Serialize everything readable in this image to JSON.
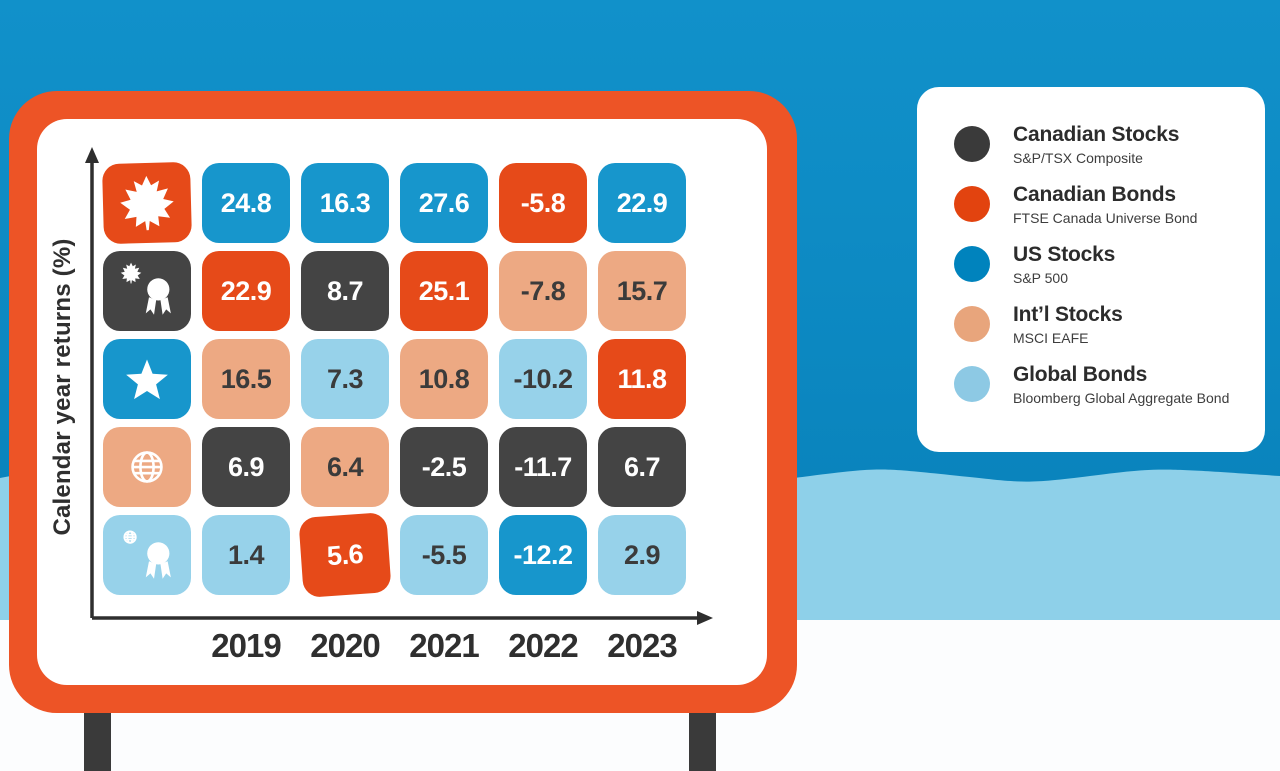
{
  "background": {
    "sky_top": "#1191ca",
    "sky_bottom": "#0a84bd",
    "wave_color": "#8ed0e9",
    "ground_color": "#fcfdfe"
  },
  "billboard": {
    "frame_color": "#ed5426",
    "panel_color": "#ffffff",
    "leg_color": "#3a3a3a",
    "axis_color": "#2e2e2e"
  },
  "palette": {
    "canadian_stocks": {
      "fill": "#444444",
      "text": "#ffffff"
    },
    "canadian_bonds": {
      "fill": "#e64a19",
      "text": "#ffffff"
    },
    "us_stocks": {
      "fill": "#1796cc",
      "text": "#ffffff"
    },
    "intl_stocks": {
      "fill": "#eda983",
      "text": "#3b3b3b"
    },
    "global_bonds": {
      "fill": "#97d2ea",
      "text": "#3b3b3b"
    }
  },
  "chart_data": {
    "type": "table",
    "title": "",
    "ylabel": "Calendar year returns (%)",
    "years": [
      "2019",
      "2020",
      "2021",
      "2022",
      "2023"
    ],
    "rows": [
      {
        "rank": 1,
        "icon": "maple-leaf",
        "icon_color": "canadian_bonds",
        "cells": [
          {
            "value": "24.8",
            "asset": "us_stocks"
          },
          {
            "value": "16.3",
            "asset": "us_stocks"
          },
          {
            "value": "27.6",
            "asset": "us_stocks"
          },
          {
            "value": "-5.8",
            "asset": "canadian_bonds"
          },
          {
            "value": "22.9",
            "asset": "us_stocks"
          }
        ]
      },
      {
        "rank": 2,
        "icon": "maple-leaf-award",
        "icon_color": "canadian_stocks",
        "cells": [
          {
            "value": "22.9",
            "asset": "canadian_bonds"
          },
          {
            "value": "8.7",
            "asset": "canadian_stocks"
          },
          {
            "value": "25.1",
            "asset": "canadian_bonds"
          },
          {
            "value": "-7.8",
            "asset": "intl_stocks"
          },
          {
            "value": "15.7",
            "asset": "intl_stocks"
          }
        ]
      },
      {
        "rank": 3,
        "icon": "star",
        "icon_color": "us_stocks",
        "cells": [
          {
            "value": "16.5",
            "asset": "intl_stocks"
          },
          {
            "value": "7.3",
            "asset": "global_bonds"
          },
          {
            "value": "10.8",
            "asset": "intl_stocks"
          },
          {
            "value": "-10.2",
            "asset": "global_bonds"
          },
          {
            "value": "11.8",
            "asset": "canadian_bonds"
          }
        ]
      },
      {
        "rank": 4,
        "icon": "globe",
        "icon_color": "intl_stocks",
        "cells": [
          {
            "value": "6.9",
            "asset": "canadian_stocks"
          },
          {
            "value": "6.4",
            "asset": "intl_stocks"
          },
          {
            "value": "-2.5",
            "asset": "canadian_stocks"
          },
          {
            "value": "-11.7",
            "asset": "canadian_stocks"
          },
          {
            "value": "6.7",
            "asset": "canadian_stocks"
          }
        ]
      },
      {
        "rank": 5,
        "icon": "globe-award",
        "icon_color": "global_bonds",
        "cells": [
          {
            "value": "1.4",
            "asset": "global_bonds"
          },
          {
            "value": "5.6",
            "asset": "canadian_bonds"
          },
          {
            "value": "-5.5",
            "asset": "global_bonds"
          },
          {
            "value": "-12.2",
            "asset": "us_stocks"
          },
          {
            "value": "2.9",
            "asset": "global_bonds"
          }
        ]
      }
    ]
  },
  "legend": {
    "items": [
      {
        "label": "Canadian Stocks",
        "sublabel": "S&P/TSX Composite",
        "asset": "canadian_stocks",
        "dot_color": "#3a3a3a"
      },
      {
        "label": "Canadian Bonds",
        "sublabel": "FTSE Canada Universe Bond",
        "asset": "canadian_bonds",
        "dot_color": "#e2430f"
      },
      {
        "label": "US Stocks",
        "sublabel": "S&P 500",
        "asset": "us_stocks",
        "dot_color": "#0083bd"
      },
      {
        "label": "Int’l Stocks",
        "sublabel": "MSCI EAFE",
        "asset": "intl_stocks",
        "dot_color": "#e8a57c"
      },
      {
        "label": "Global Bonds",
        "sublabel": "Bloomberg Global Aggregate Bond",
        "asset": "global_bonds",
        "dot_color": "#8dc9e4"
      }
    ]
  }
}
